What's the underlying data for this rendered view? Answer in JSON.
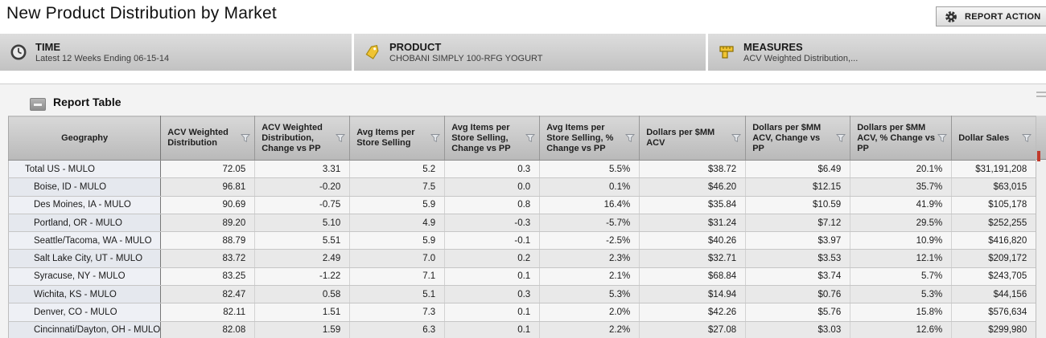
{
  "page": {
    "title": "New Product Distribution by Market"
  },
  "toolbar": {
    "report_actions_label": "REPORT ACTION",
    "icon": "gear-icon"
  },
  "filters": [
    {
      "id": "time",
      "icon": "clock-icon",
      "label": "TIME",
      "value": "Latest 12 Weeks Ending 06-15-14"
    },
    {
      "id": "product",
      "icon": "tag-icon",
      "label": "PRODUCT",
      "value": "CHOBANI SIMPLY 100-RFG YOGURT"
    },
    {
      "id": "measures",
      "icon": "ruler-icon",
      "label": "MEASURES",
      "value": "ACV Weighted Distribution,..."
    }
  ],
  "report": {
    "section_title": "Report Table",
    "collapse_icon": "minus-icon",
    "columns": [
      {
        "label": "Geography",
        "filterable": false
      },
      {
        "label": "ACV Weighted Distribution",
        "filterable": true
      },
      {
        "label": "ACV Weighted Distribution, Change vs PP",
        "filterable": true
      },
      {
        "label": "Avg Items per Store Selling",
        "filterable": true
      },
      {
        "label": "Avg Items per Store Selling, Change vs PP",
        "filterable": true
      },
      {
        "label": "Avg Items per Store Selling, % Change vs PP",
        "filterable": true
      },
      {
        "label": "Dollars per $MM ACV",
        "filterable": true
      },
      {
        "label": "Dollars per $MM ACV, Change vs PP",
        "filterable": true
      },
      {
        "label": "Dollars per $MM ACV, % Change vs PP",
        "filterable": true
      },
      {
        "label": "Dollar Sales",
        "filterable": true
      }
    ],
    "rows": [
      {
        "geography": "Total US - MULO",
        "level": 0,
        "values": [
          "72.05",
          "3.31",
          "5.2",
          "0.3",
          "5.5%",
          "$38.72",
          "$6.49",
          "20.1%",
          "$31,191,208"
        ]
      },
      {
        "geography": "Boise, ID - MULO",
        "level": 1,
        "values": [
          "96.81",
          "-0.20",
          "7.5",
          "0.0",
          "0.1%",
          "$46.20",
          "$12.15",
          "35.7%",
          "$63,015"
        ]
      },
      {
        "geography": "Des Moines, IA - MULO",
        "level": 1,
        "values": [
          "90.69",
          "-0.75",
          "5.9",
          "0.8",
          "16.4%",
          "$35.84",
          "$10.59",
          "41.9%",
          "$105,178"
        ]
      },
      {
        "geography": "Portland, OR - MULO",
        "level": 1,
        "values": [
          "89.20",
          "5.10",
          "4.9",
          "-0.3",
          "-5.7%",
          "$31.24",
          "$7.12",
          "29.5%",
          "$252,255"
        ]
      },
      {
        "geography": "Seattle/Tacoma, WA - MULO",
        "level": 1,
        "values": [
          "88.79",
          "5.51",
          "5.9",
          "-0.1",
          "-2.5%",
          "$40.26",
          "$3.97",
          "10.9%",
          "$416,820"
        ]
      },
      {
        "geography": "Salt Lake City, UT - MULO",
        "level": 1,
        "values": [
          "83.72",
          "2.49",
          "7.0",
          "0.2",
          "2.3%",
          "$32.71",
          "$3.53",
          "12.1%",
          "$209,172"
        ]
      },
      {
        "geography": "Syracuse, NY - MULO",
        "level": 1,
        "values": [
          "83.25",
          "-1.22",
          "7.1",
          "0.1",
          "2.1%",
          "$68.84",
          "$3.74",
          "5.7%",
          "$243,705"
        ]
      },
      {
        "geography": "Wichita, KS - MULO",
        "level": 1,
        "values": [
          "82.47",
          "0.58",
          "5.1",
          "0.3",
          "5.3%",
          "$14.94",
          "$0.76",
          "5.3%",
          "$44,156"
        ]
      },
      {
        "geography": "Denver, CO - MULO",
        "level": 1,
        "values": [
          "82.11",
          "1.51",
          "7.3",
          "0.1",
          "2.0%",
          "$42.26",
          "$5.76",
          "15.8%",
          "$576,634"
        ]
      },
      {
        "geography": "Cincinnati/Dayton, OH - MULO",
        "level": 1,
        "values": [
          "82.08",
          "1.59",
          "6.3",
          "0.1",
          "2.2%",
          "$27.08",
          "$3.03",
          "12.6%",
          "$299,980"
        ]
      }
    ]
  },
  "colors": {
    "accent_yellow": "#f0c433",
    "bar_gradient_top": "#dddddd",
    "bar_gradient_bottom": "#c2c2c2",
    "row_alt": "#e9e9e9",
    "geo_col_tint": "#eef0f5",
    "partial_panel_red": "#c0392b"
  }
}
